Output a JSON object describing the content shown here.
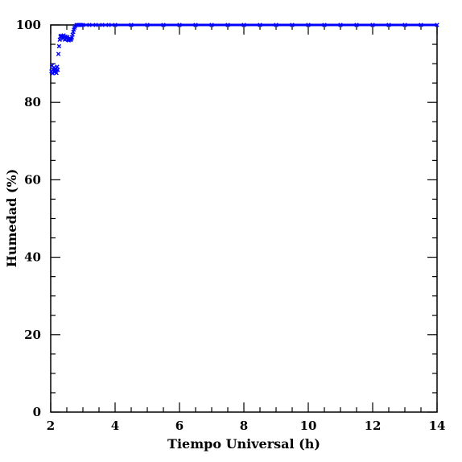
{
  "chart_data": {
    "type": "scatter",
    "title": "",
    "xlabel": "Tiempo Universal (h)",
    "ylabel": "Humedad (%)",
    "xlim": [
      2,
      14
    ],
    "ylim": [
      0,
      100
    ],
    "x_ticks": [
      2,
      4,
      6,
      8,
      10,
      12,
      14
    ],
    "y_ticks": [
      0,
      20,
      40,
      60,
      80,
      100
    ],
    "x_ticks_labels": [
      "2",
      "4",
      "6",
      "8",
      "10",
      "12",
      "14"
    ],
    "y_ticks_labels": [
      "0",
      "20",
      "40",
      "60",
      "80",
      "100"
    ],
    "grid": false,
    "marker": "x",
    "color": "#0000ff",
    "series": [
      {
        "x": [
          2.02,
          2.04,
          2.06,
          2.08,
          2.1,
          2.12,
          2.14,
          2.16,
          2.18,
          2.2,
          2.22,
          2.24,
          2.26,
          2.28,
          2.3,
          2.32,
          2.34,
          2.36,
          2.38,
          2.4,
          2.42,
          2.44,
          2.46,
          2.48,
          2.5,
          2.52,
          2.54,
          2.56,
          2.58,
          2.6,
          2.62,
          2.64,
          2.66,
          2.68,
          2.7,
          2.72,
          2.74,
          2.76,
          2.8,
          2.85,
          2.9,
          2.95,
          3.0,
          3.2,
          3.4,
          3.6,
          3.8,
          4.0,
          4.5,
          5.0,
          5.5,
          6.0,
          6.5,
          7.0,
          7.5,
          8.0,
          8.5,
          9.0,
          9.5,
          10.0,
          10.5,
          11.0,
          11.5,
          12.0,
          12.5,
          13.0,
          13.5,
          14.0
        ],
        "y": [
          88.0,
          89.5,
          87.5,
          88.5,
          89.0,
          87.8,
          88.3,
          88.6,
          87.6,
          89.2,
          88.4,
          92.5,
          94.5,
          96.2,
          97.0,
          97.2,
          96.8,
          97.1,
          96.5,
          97.3,
          96.9,
          96.2,
          97.0,
          96.4,
          96.6,
          96.9,
          96.2,
          96.0,
          96.3,
          96.5,
          96.1,
          96.4,
          96.8,
          97.5,
          98.2,
          98.8,
          99.3,
          99.7,
          100,
          100,
          100,
          100,
          100,
          100,
          100,
          100,
          100,
          100,
          100,
          100,
          100,
          100,
          100,
          100,
          100,
          100,
          100,
          100,
          100,
          100,
          100,
          100,
          100,
          100,
          100,
          100,
          100,
          100
        ]
      }
    ]
  }
}
